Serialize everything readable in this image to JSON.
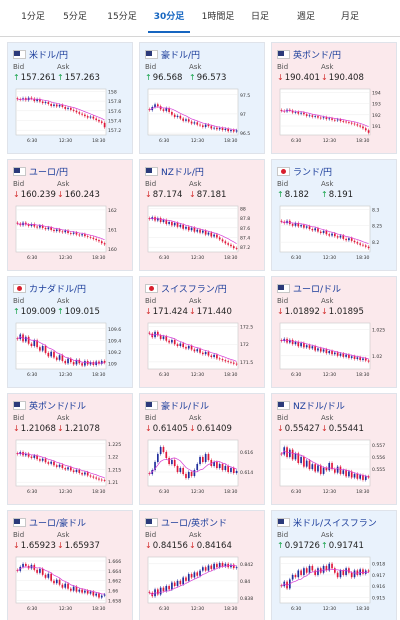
{
  "tabs": [
    {
      "label": "1分足",
      "active": false
    },
    {
      "label": "5分足",
      "active": false
    },
    {
      "label": "15分足",
      "active": false
    },
    {
      "label": "30分足",
      "active": true
    },
    {
      "label": "1時間足",
      "active": false
    },
    {
      "label": "日足",
      "active": false
    },
    {
      "label": "週足",
      "active": false
    },
    {
      "label": "月足",
      "active": false
    }
  ],
  "labels": {
    "bid": "Bid",
    "ask": "Ask"
  },
  "arrows": {
    "up": "↑",
    "down": "↓"
  },
  "colors": {
    "up_card": "#e9f2fc",
    "down_card": "#fbe9ec",
    "up_candle": "#1f2d9c",
    "down_candle": "#e0183a",
    "moving_average": "#d63cd6",
    "up_arrow": "#16a34a",
    "down_arrow": "#d32f2f"
  },
  "cards": [
    {
      "pair": "米ドル/円",
      "flag": "us-flag-icon",
      "dir": "up",
      "bid": "157.261",
      "ask": "157.263",
      "yticks": [
        "158",
        "157.8",
        "157.6",
        "157.4",
        "157.2"
      ],
      "xticks": [
        "6:30",
        "12:30",
        "18:30"
      ],
      "series": [
        157.84,
        157.83,
        157.86,
        157.82,
        157.87,
        157.85,
        157.8,
        157.84,
        157.79,
        157.76,
        157.78,
        157.74,
        157.7,
        157.73,
        157.69,
        157.72,
        157.68,
        157.64,
        157.66,
        157.62,
        157.6,
        157.57,
        157.54,
        157.52,
        157.49,
        157.46,
        157.48,
        157.44,
        157.41,
        157.38,
        157.35,
        157.26
      ],
      "ylim": [
        157.1,
        158.05
      ]
    },
    {
      "pair": "豪ドル/円",
      "flag": "au-flag-icon",
      "dir": "up",
      "bid": "96.568",
      "ask": "96.573",
      "yticks": [
        "97.5",
        "97",
        "96.5"
      ],
      "xticks": [
        "6:30",
        "12:30",
        "18:30"
      ],
      "series": [
        97.1,
        97.18,
        97.25,
        97.2,
        97.12,
        97.08,
        97.15,
        97.05,
        96.98,
        96.92,
        96.95,
        96.88,
        96.82,
        96.86,
        96.8,
        96.75,
        96.78,
        96.72,
        96.7,
        96.66,
        96.72,
        96.68,
        96.62,
        96.64,
        96.6,
        96.63,
        96.58,
        96.61,
        96.55,
        96.58,
        96.54,
        96.57
      ],
      "ylim": [
        96.45,
        97.65
      ]
    },
    {
      "pair": "英ポンド/円",
      "flag": "gb-flag-icon",
      "dir": "down",
      "bid": "190.401",
      "ask": "190.408",
      "yticks": [
        "194",
        "193",
        "192",
        "191"
      ],
      "xticks": [
        "6:30",
        "12:30",
        "18:30"
      ],
      "series": [
        192.35,
        192.3,
        192.45,
        192.38,
        192.2,
        192.25,
        192.1,
        192.18,
        192.05,
        191.9,
        191.95,
        191.82,
        191.88,
        191.75,
        191.7,
        191.78,
        191.62,
        191.68,
        191.55,
        191.5,
        191.58,
        191.44,
        191.4,
        191.35,
        191.3,
        191.22,
        191.15,
        191.05,
        190.95,
        190.8,
        190.62,
        190.4
      ],
      "ylim": [
        190.2,
        194.3
      ]
    },
    {
      "pair": "ユーロ/円",
      "flag": "eu-flag-icon",
      "dir": "down",
      "bid": "160.239",
      "ask": "160.243",
      "yticks": [
        "162",
        "161",
        "160"
      ],
      "xticks": [
        "6:30",
        "12:30",
        "18:30"
      ],
      "series": [
        161.3,
        161.22,
        161.35,
        161.25,
        161.18,
        161.28,
        161.15,
        161.1,
        161.2,
        161.08,
        161.02,
        161.1,
        160.98,
        160.92,
        161.0,
        160.9,
        160.86,
        160.94,
        160.82,
        160.78,
        160.84,
        160.74,
        160.7,
        160.76,
        160.66,
        160.62,
        160.58,
        160.52,
        160.46,
        160.4,
        160.3,
        160.24
      ],
      "ylim": [
        159.85,
        162.2
      ]
    },
    {
      "pair": "NZドル/円",
      "flag": "nz-flag-icon",
      "dir": "down",
      "bid": "87.174",
      "ask": "87.181",
      "yticks": [
        "88",
        "87.8",
        "87.6",
        "87.4",
        "87.2"
      ],
      "xticks": [
        "6:30",
        "12:30",
        "18:30"
      ],
      "series": [
        87.78,
        87.82,
        87.75,
        87.8,
        87.72,
        87.76,
        87.68,
        87.72,
        87.65,
        87.7,
        87.62,
        87.66,
        87.58,
        87.62,
        87.55,
        87.6,
        87.52,
        87.56,
        87.5,
        87.54,
        87.46,
        87.5,
        87.42,
        87.46,
        87.4,
        87.36,
        87.32,
        87.28,
        87.25,
        87.22,
        87.18,
        87.17
      ],
      "ylim": [
        87.1,
        88.05
      ]
    },
    {
      "pair": "ランド/円",
      "flag": "za-flag-icon",
      "dir": "up",
      "bid": "8.182",
      "ask": "8.191",
      "yticks": [
        "8.3",
        "8.25",
        "8.2"
      ],
      "xticks": [
        "6:30",
        "12:30",
        "18:30"
      ],
      "series": [
        8.262,
        8.258,
        8.265,
        8.255,
        8.25,
        8.258,
        8.248,
        8.252,
        8.244,
        8.248,
        8.24,
        8.236,
        8.242,
        8.232,
        8.228,
        8.234,
        8.224,
        8.22,
        8.226,
        8.218,
        8.214,
        8.22,
        8.21,
        8.206,
        8.212,
        8.204,
        8.2,
        8.196,
        8.192,
        8.19,
        8.186,
        8.182
      ],
      "ylim": [
        8.17,
        8.31
      ]
    },
    {
      "pair": "カナダドル/円",
      "flag": "ca-flag-icon",
      "dir": "up",
      "bid": "109.009",
      "ask": "109.015",
      "yticks": [
        "109.6",
        "109.4",
        "109.2",
        "109"
      ],
      "xticks": [
        "6:30",
        "12:30",
        "18:30"
      ],
      "series": [
        109.42,
        109.5,
        109.38,
        109.46,
        109.34,
        109.3,
        109.4,
        109.28,
        109.22,
        109.3,
        109.18,
        109.12,
        109.2,
        109.1,
        109.06,
        109.14,
        109.04,
        109.0,
        109.08,
        109.02,
        108.98,
        109.06,
        109.0,
        108.96,
        109.04,
        108.98,
        109.02,
        108.97,
        109.03,
        108.99,
        109.04,
        109.01
      ],
      "ylim": [
        108.9,
        109.7
      ]
    },
    {
      "pair": "スイスフラン/円",
      "flag": "ch-flag-icon",
      "dir": "down",
      "bid": "171.424",
      "ask": "171.440",
      "yticks": [
        "172.5",
        "172",
        "171.5"
      ],
      "xticks": [
        "6:30",
        "12:30",
        "18:30"
      ],
      "series": [
        172.3,
        172.2,
        172.35,
        172.25,
        172.15,
        172.22,
        172.1,
        172.05,
        172.12,
        172.0,
        171.95,
        172.02,
        171.92,
        171.88,
        171.95,
        171.85,
        171.8,
        171.86,
        171.76,
        171.72,
        171.78,
        171.68,
        171.64,
        171.7,
        171.6,
        171.58,
        171.55,
        171.52,
        171.5,
        171.48,
        171.45,
        171.43
      ],
      "ylim": [
        171.3,
        172.6
      ]
    },
    {
      "pair": "ユーロ/ドル",
      "flag": "eu-flag-icon",
      "dir": "down",
      "bid": "1.01892",
      "ask": "1.01895",
      "yticks": [
        "1.025",
        "1.02"
      ],
      "xticks": [
        "6:30",
        "12:30",
        "18:30"
      ],
      "series": [
        1.0228,
        1.0232,
        1.0225,
        1.023,
        1.0222,
        1.0226,
        1.0218,
        1.0224,
        1.0216,
        1.022,
        1.0214,
        1.0218,
        1.021,
        1.0214,
        1.0208,
        1.0212,
        1.0205,
        1.0209,
        1.0203,
        1.0206,
        1.02,
        1.0204,
        1.0198,
        1.0202,
        1.0196,
        1.0199,
        1.0194,
        1.0197,
        1.0192,
        1.0195,
        1.0191,
        1.0189
      ],
      "ylim": [
        1.0175,
        1.0262
      ]
    },
    {
      "pair": "英ポンド/ドル",
      "flag": "gb-flag-icon",
      "dir": "down",
      "bid": "1.21068",
      "ask": "1.21078",
      "yticks": [
        "1.225",
        "1.22",
        "1.215",
        "1.21"
      ],
      "xticks": [
        "6:30",
        "12:30",
        "18:30"
      ],
      "series": [
        1.221,
        1.2218,
        1.2205,
        1.2212,
        1.22,
        1.2195,
        1.2204,
        1.219,
        1.2184,
        1.2192,
        1.2178,
        1.2172,
        1.218,
        1.2166,
        1.216,
        1.2168,
        1.2155,
        1.215,
        1.2158,
        1.2146,
        1.214,
        1.2148,
        1.2136,
        1.213,
        1.2138,
        1.2126,
        1.2122,
        1.2118,
        1.2114,
        1.211,
        1.2108,
        1.2107
      ],
      "ylim": [
        1.2085,
        1.2265
      ]
    },
    {
      "pair": "豪ドル/ドル",
      "flag": "au-flag-icon",
      "dir": "down",
      "bid": "0.61405",
      "ask": "0.61409",
      "yticks": [
        "0.616",
        "0.614"
      ],
      "xticks": [
        "6:30",
        "12:30",
        "18:30"
      ],
      "series": [
        0.6138,
        0.6142,
        0.615,
        0.6158,
        0.6165,
        0.616,
        0.6154,
        0.6148,
        0.6152,
        0.6146,
        0.614,
        0.6144,
        0.6138,
        0.6134,
        0.614,
        0.6136,
        0.6142,
        0.6148,
        0.6155,
        0.615,
        0.6158,
        0.6152,
        0.6146,
        0.615,
        0.6144,
        0.6148,
        0.6142,
        0.6146,
        0.614,
        0.6144,
        0.6139,
        0.6141
      ],
      "ylim": [
        0.6126,
        0.6172
      ]
    },
    {
      "pair": "NZドル/ドル",
      "flag": "nz-flag-icon",
      "dir": "down",
      "bid": "0.55427",
      "ask": "0.55441",
      "yticks": [
        "0.557",
        "0.556",
        "0.555"
      ],
      "xticks": [
        "6:30",
        "12:30",
        "18:30"
      ],
      "series": [
        0.5562,
        0.5568,
        0.556,
        0.5566,
        0.5558,
        0.5563,
        0.5555,
        0.556,
        0.5552,
        0.5557,
        0.555,
        0.5554,
        0.5548,
        0.5553,
        0.5546,
        0.5551,
        0.5549,
        0.5555,
        0.555,
        0.5547,
        0.5552,
        0.5546,
        0.5549,
        0.5544,
        0.5548,
        0.5543,
        0.5546,
        0.5542,
        0.5545,
        0.5541,
        0.5544,
        0.5543
      ],
      "ylim": [
        0.5536,
        0.5574
      ]
    },
    {
      "pair": "ユーロ/豪ドル",
      "flag": "eu-flag-icon",
      "dir": "down",
      "bid": "1.65923",
      "ask": "1.65937",
      "yticks": [
        "1.666",
        "1.664",
        "1.662",
        "1.66",
        "1.658"
      ],
      "xticks": [
        "6:30",
        "12:30",
        "18:30"
      ],
      "series": [
        1.664,
        1.6648,
        1.6654,
        1.665,
        1.6645,
        1.6652,
        1.6642,
        1.6636,
        1.6644,
        1.6632,
        1.6626,
        1.6634,
        1.662,
        1.6615,
        1.6622,
        1.6612,
        1.6606,
        1.6614,
        1.6604,
        1.66,
        1.6608,
        1.6598,
        1.6602,
        1.6596,
        1.66,
        1.6594,
        1.6598,
        1.659,
        1.6594,
        1.6586,
        1.659,
        1.6592
      ],
      "ylim": [
        1.6575,
        1.6668
      ]
    },
    {
      "pair": "ユーロ/英ポンド",
      "flag": "eu-flag-icon",
      "dir": "down",
      "bid": "0.84156",
      "ask": "0.84164",
      "yticks": [
        "0.842",
        "0.84",
        "0.838"
      ],
      "xticks": [
        "6:30",
        "12:30",
        "18:30"
      ],
      "series": [
        0.8386,
        0.8382,
        0.839,
        0.8384,
        0.8392,
        0.8388,
        0.8394,
        0.839,
        0.8398,
        0.8394,
        0.84,
        0.8396,
        0.8404,
        0.84,
        0.8408,
        0.8404,
        0.841,
        0.8406,
        0.8412,
        0.8416,
        0.8412,
        0.8418,
        0.8414,
        0.842,
        0.8416,
        0.8421,
        0.8417,
        0.842,
        0.8416,
        0.8419,
        0.8415,
        0.8416
      ],
      "ylim": [
        0.8374,
        0.8428
      ]
    },
    {
      "pair": "米ドル/スイスフラン",
      "flag": "us-flag-icon",
      "dir": "up",
      "bid": "0.91726",
      "ask": "0.91741",
      "yticks": [
        "0.918",
        "0.917",
        "0.916",
        "0.915"
      ],
      "xticks": [
        "6:30",
        "12:30",
        "18:30"
      ],
      "series": [
        0.916,
        0.9164,
        0.9158,
        0.9166,
        0.917,
        0.9168,
        0.9174,
        0.917,
        0.9176,
        0.9172,
        0.9178,
        0.9174,
        0.917,
        0.9176,
        0.9172,
        0.9178,
        0.9174,
        0.918,
        0.9176,
        0.9172,
        0.9168,
        0.9174,
        0.917,
        0.9176,
        0.9172,
        0.9168,
        0.9174,
        0.917,
        0.9175,
        0.9171,
        0.9174,
        0.9173
      ],
      "ylim": [
        0.9145,
        0.9186
      ]
    }
  ]
}
